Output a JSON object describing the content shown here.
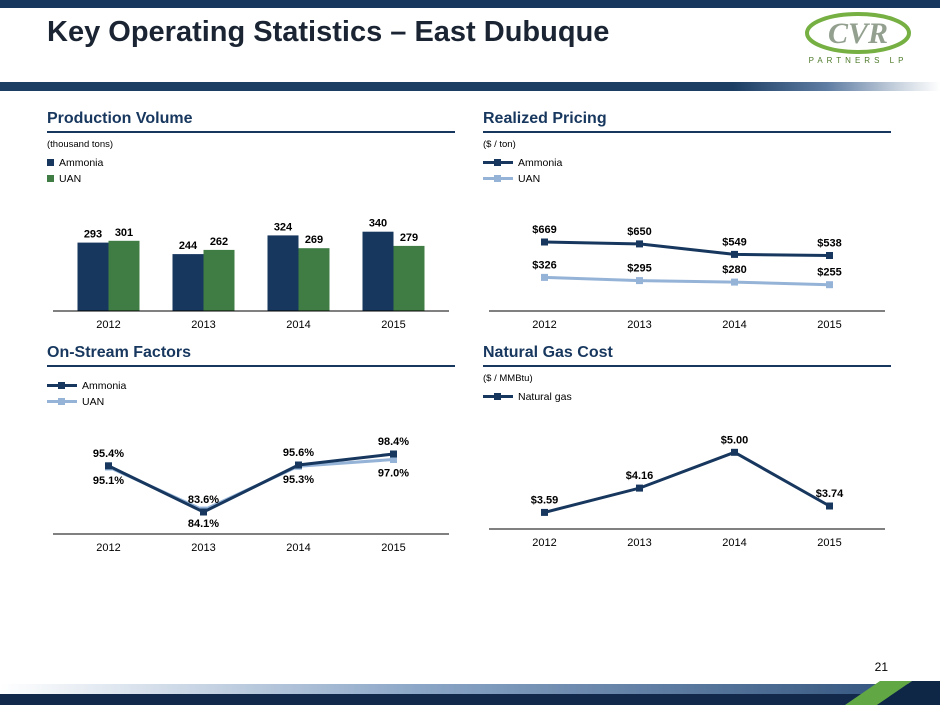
{
  "slide": {
    "title": "Key Operating Statistics – East Dubuque",
    "page_number": "21"
  },
  "logo": {
    "name": "CVR Partners LP",
    "text": "CVR",
    "subtext": "PARTNERS LP",
    "green": "#76b043",
    "gray": "#93a08f"
  },
  "colors": {
    "brand_navy": "#17375E",
    "brand_green": "#3f7d44",
    "light_blue": "#95B3D7",
    "footer_navy": "#13294b",
    "footer_green": "#61a744"
  },
  "chart_data": [
    {
      "type": "bar",
      "title": "Production Volume",
      "unit_label": "(thousand tons)",
      "categories": [
        "2012",
        "2013",
        "2014",
        "2015"
      ],
      "series": [
        {
          "name": "Ammonia",
          "color": "#17375E",
          "values": [
            293,
            244,
            324,
            340
          ],
          "labels": [
            "293",
            "244",
            "324",
            "340"
          ]
        },
        {
          "name": "UAN",
          "color": "#3f7d44",
          "values": [
            301,
            262,
            269,
            279
          ],
          "labels": [
            "301",
            "262",
            "269",
            "279"
          ]
        }
      ],
      "ylim": [
        0,
        420
      ],
      "grid": false,
      "legend_position": "top-left"
    },
    {
      "type": "line",
      "title": "Realized Pricing",
      "unit_label": "($ / ton)",
      "categories": [
        "2012",
        "2013",
        "2014",
        "2015"
      ],
      "series": [
        {
          "name": "Ammonia",
          "color": "#17375E",
          "values": [
            669,
            650,
            549,
            538
          ],
          "labels": [
            "$669",
            "$650",
            "$549",
            "$538"
          ],
          "label_pos": "above"
        },
        {
          "name": "UAN",
          "color": "#95B3D7",
          "values": [
            326,
            295,
            280,
            255
          ],
          "labels": [
            "$326",
            "$295",
            "$280",
            "$255"
          ],
          "label_pos": "above"
        }
      ],
      "ylim": [
        0,
        950
      ],
      "grid": false,
      "legend_position": "top-left"
    },
    {
      "type": "line",
      "title": "On-Stream Factors",
      "unit_label": "",
      "categories": [
        "2012",
        "2013",
        "2014",
        "2015"
      ],
      "series": [
        {
          "name": "Ammonia",
          "color": "#17375E",
          "values": [
            95.4,
            83.6,
            95.6,
            98.4
          ],
          "labels": [
            "95.4%",
            "83.6%",
            "95.6%",
            "98.4%"
          ],
          "label_pos": "above"
        },
        {
          "name": "UAN",
          "color": "#95B3D7",
          "values": [
            95.1,
            84.1,
            95.3,
            97.0
          ],
          "labels": [
            "95.1%",
            "84.1%",
            "95.3%",
            "97.0%"
          ],
          "label_pos": "below"
        }
      ],
      "ylim": [
        78,
        103
      ],
      "grid": false,
      "legend_position": "top-left"
    },
    {
      "type": "line",
      "title": "Natural Gas Cost",
      "unit_label": "($ / MMBtu)",
      "categories": [
        "2012",
        "2013",
        "2014",
        "2015"
      ],
      "series": [
        {
          "name": "Natural gas",
          "color": "#17375E",
          "values": [
            3.59,
            4.16,
            5.0,
            3.74
          ],
          "labels": [
            "$3.59",
            "$4.16",
            "$5.00",
            "$3.74"
          ],
          "label_pos": "above"
        }
      ],
      "ylim": [
        3.2,
        5.5
      ],
      "grid": false,
      "legend_position": "top-left"
    }
  ]
}
